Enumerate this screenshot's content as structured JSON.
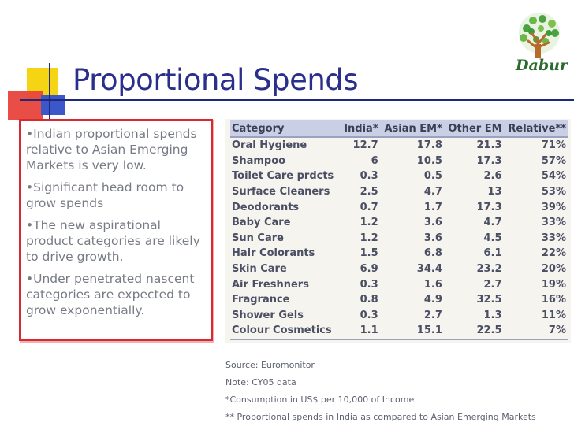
{
  "slide": {
    "title": "Proportional Spends"
  },
  "logo": {
    "text": "Dabur",
    "icon": "tree-logo-icon",
    "colors": {
      "trunk": "#b86a2a",
      "leaves": "#3f9a3a",
      "text": "#2c6b2f"
    }
  },
  "bullets": [
    "•Indian proportional spends relative to Asian Emerging Markets is very low.",
    "•Significant head room to grow spends",
    "•The new aspirational product categories are likely to drive growth.",
    "•Under penetrated nascent categories are expected to grow exponentially."
  ],
  "table": {
    "headers": [
      "Category",
      "India*",
      "Asian EM*",
      "Other EM",
      "Relative**"
    ],
    "rows": [
      [
        "Oral Hygiene",
        "12.7",
        "17.8",
        "21.3",
        "71%"
      ],
      [
        "Shampoo",
        "6",
        "10.5",
        "17.3",
        "57%"
      ],
      [
        "Toilet Care prdcts",
        "0.3",
        "0.5",
        "2.6",
        "54%"
      ],
      [
        "Surface Cleaners",
        "2.5",
        "4.7",
        "13",
        "53%"
      ],
      [
        "Deodorants",
        "0.7",
        "1.7",
        "17.3",
        "39%"
      ],
      [
        "Baby Care",
        "1.2",
        "3.6",
        "4.7",
        "33%"
      ],
      [
        "Sun Care",
        "1.2",
        "3.6",
        "4.5",
        "33%"
      ],
      [
        "Hair Colorants",
        "1.5",
        "6.8",
        "6.1",
        "22%"
      ],
      [
        "Skin Care",
        "6.9",
        "34.4",
        "23.2",
        "20%"
      ],
      [
        "Air Freshners",
        "0.3",
        "1.6",
        "2.7",
        "19%"
      ],
      [
        "Fragrance",
        "0.8",
        "4.9",
        "32.5",
        "16%"
      ],
      [
        "Shower Gels",
        "0.3",
        "2.7",
        "1.3",
        "11%"
      ],
      [
        "Colour Cosmetics",
        "1.1",
        "15.1",
        "22.5",
        "7%"
      ]
    ]
  },
  "notes": [
    "Source: Euromonitor",
    "Note: CY05 data",
    "*Consumption in US$ per 10,000 of Income",
    "** Proportional spends in India as compared to Asian Emerging Markets"
  ],
  "colors": {
    "title": "#2b2f8c",
    "bullet_border": "#d9282f",
    "table_header_bg": "#c9d0e6"
  }
}
